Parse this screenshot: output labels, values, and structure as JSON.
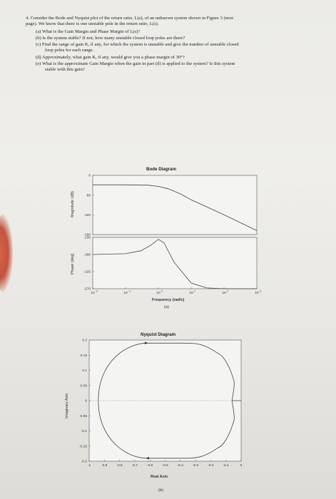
{
  "question": {
    "lines": [
      "4. Consider the Bode and Nyquist plot of the return ratio, L(s), of an unknown system shown in Figure 3 (next",
      "page). We know that there is one unstable pole in the return ratio, L(s).",
      "(a) What is the Gain Margin and Phase Margin of L(s)?",
      "(b) Is the system stable? If not, how many unstable closed loop poles are there?",
      "(c) Find the range of gain K, if any, for which the system is unstable and give the number of unstable closed",
      "loop poles for each range.",
      "(d) Approximately, what gain K, if any, would give you a phase margin of 30°?",
      "(e) What is the approximate Gain Margin when the gain in part (d) is applied to the system? Is this system",
      "stable with this gain?"
    ]
  },
  "bode": {
    "title": "Bode Diagram",
    "mag_ylabel": "Magnitude (dB)",
    "phase_ylabel": "Phase (deg)",
    "xlabel": "Frequency  (rad/s)",
    "caption": "(a)",
    "mag_ticks": [
      "0",
      "-50",
      "-100",
      "-150"
    ],
    "phase_ticks": [
      "-135",
      "-180",
      "-225",
      "-270"
    ],
    "x_ticks": [
      "10",
      "10",
      "10",
      "10",
      "10",
      "10"
    ],
    "x_tick_exps": [
      "-2",
      "-1",
      "0",
      "1",
      "2",
      "3"
    ]
  },
  "nyquist": {
    "title": "Nyquist Diagram",
    "ylabel": "Imaginary Axis",
    "xlabel": "Real Axis",
    "caption": "(b)",
    "y_ticks": [
      "0.2",
      "0.15",
      "0.1",
      "0.05",
      "0",
      "-0.05",
      "-0.1",
      "-0.15",
      "-0.2"
    ],
    "x_ticks": [
      "-1",
      "-0.9",
      "-0.8",
      "-0.7",
      "-0.6",
      "-0.5",
      "-0.4",
      "-0.3",
      "-0.2",
      "-0.1",
      "0"
    ]
  },
  "chart_data": [
    {
      "type": "line",
      "title": "Bode Diagram",
      "subplot": "magnitude",
      "xlabel": "Frequency  (rad/s)",
      "ylabel": "Magnitude (dB)",
      "x_scale": "log",
      "xlim": [
        0.01,
        1000
      ],
      "ylim": [
        -150,
        0
      ],
      "series": [
        {
          "x": [
            0.01,
            0.1,
            0.5,
            1,
            2,
            5,
            10,
            30,
            100,
            1000
          ],
          "y": [
            -24,
            -24,
            -25,
            -28,
            -34,
            -48,
            -62,
            -80,
            -100,
            -140
          ]
        }
      ]
    },
    {
      "type": "line",
      "title": "Bode Diagram",
      "subplot": "phase",
      "xlabel": "Frequency  (rad/s)",
      "ylabel": "Phase (deg)",
      "x_scale": "log",
      "xlim": [
        0.01,
        1000
      ],
      "ylim": [
        -270,
        -135
      ],
      "series": [
        {
          "x": [
            0.01,
            0.1,
            0.3,
            0.6,
            1,
            1.5,
            3,
            10,
            30,
            100,
            1000
          ],
          "y": [
            -180,
            -178,
            -170,
            -155,
            -140,
            -150,
            -200,
            -255,
            -268,
            -270,
            -270
          ]
        }
      ]
    },
    {
      "type": "line",
      "title": "Nyquist Diagram",
      "xlabel": "Real Axis",
      "ylabel": "Imaginary Axis",
      "xlim": [
        -1,
        0
      ],
      "ylim": [
        -0.2,
        0.2
      ],
      "series": [
        {
          "x": [
            -0.06,
            -0.05,
            -0.15,
            -0.38,
            -0.62,
            -0.86,
            -0.94,
            -0.86,
            -0.62,
            -0.38,
            -0.15,
            -0.05,
            -0.06,
            -0.03,
            0
          ],
          "y": [
            0.0,
            0.07,
            0.155,
            0.19,
            0.19,
            0.14,
            0.0,
            -0.14,
            -0.19,
            -0.19,
            -0.155,
            -0.07,
            0.0,
            0.0,
            0.0
          ]
        }
      ]
    }
  ]
}
